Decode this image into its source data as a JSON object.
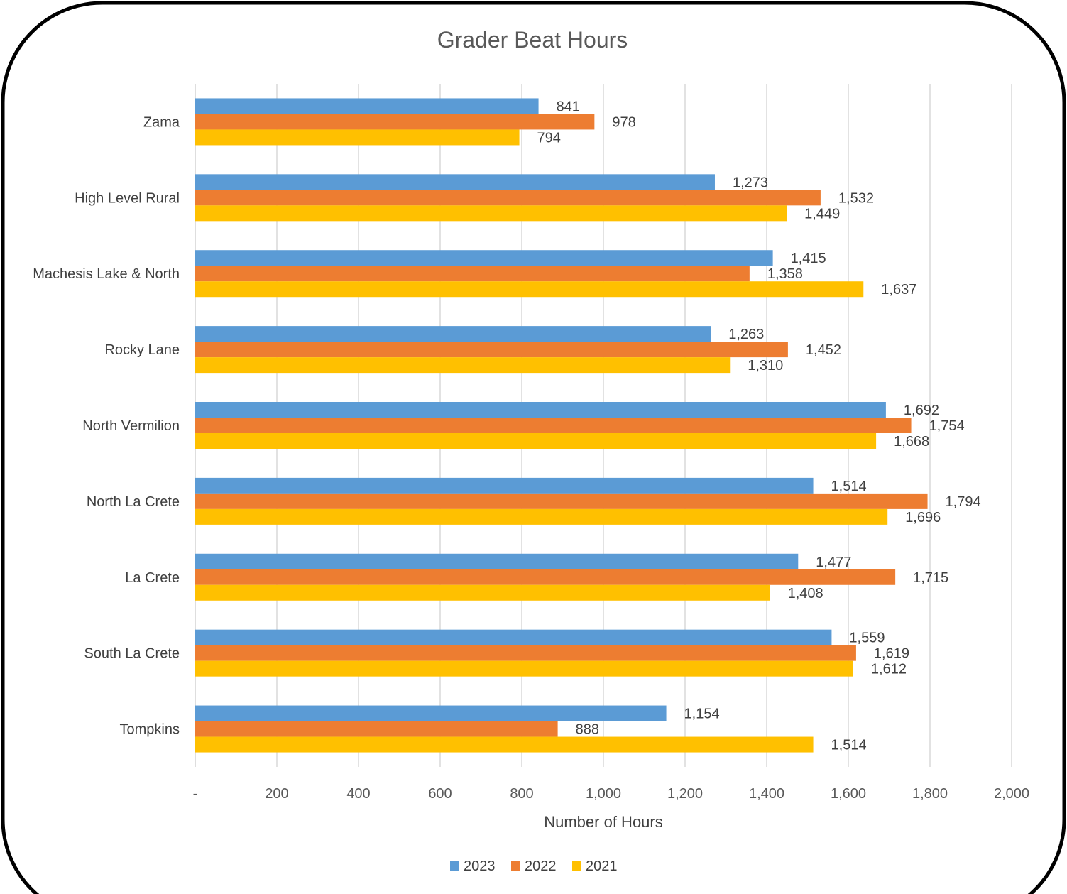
{
  "chart_data": {
    "type": "bar",
    "orientation": "horizontal",
    "title": "Grader Beat Hours",
    "xlabel": "Number  of Hours",
    "ylabel": "",
    "xlim": [
      0,
      2000
    ],
    "x_ticks": [
      0,
      200,
      400,
      600,
      800,
      1000,
      1200,
      1400,
      1600,
      1800,
      2000
    ],
    "x_tick_labels": [
      "-",
      "200",
      "400",
      "600",
      "800",
      "1,000",
      "1,200",
      "1,400",
      "1,600",
      "1,800",
      "2,000"
    ],
    "grid": "vertical",
    "legend_position": "bottom",
    "categories": [
      "Zama",
      "High Level Rural",
      "Machesis Lake & North",
      "Rocky Lane",
      "North Vermilion",
      "North La Crete",
      "La Crete",
      "South La Crete",
      "Tompkins"
    ],
    "series": [
      {
        "name": "2023",
        "color": "#5B9BD5",
        "values": [
          841,
          1273,
          1415,
          1263,
          1692,
          1514,
          1477,
          1559,
          1154
        ]
      },
      {
        "name": "2022",
        "color": "#ED7D31",
        "values": [
          978,
          1532,
          1358,
          1452,
          1754,
          1794,
          1715,
          1619,
          888
        ]
      },
      {
        "name": "2021",
        "color": "#FFC000",
        "values": [
          794,
          1449,
          1637,
          1310,
          1668,
          1696,
          1408,
          1612,
          1514
        ]
      }
    ],
    "value_format": "thousands-comma"
  }
}
